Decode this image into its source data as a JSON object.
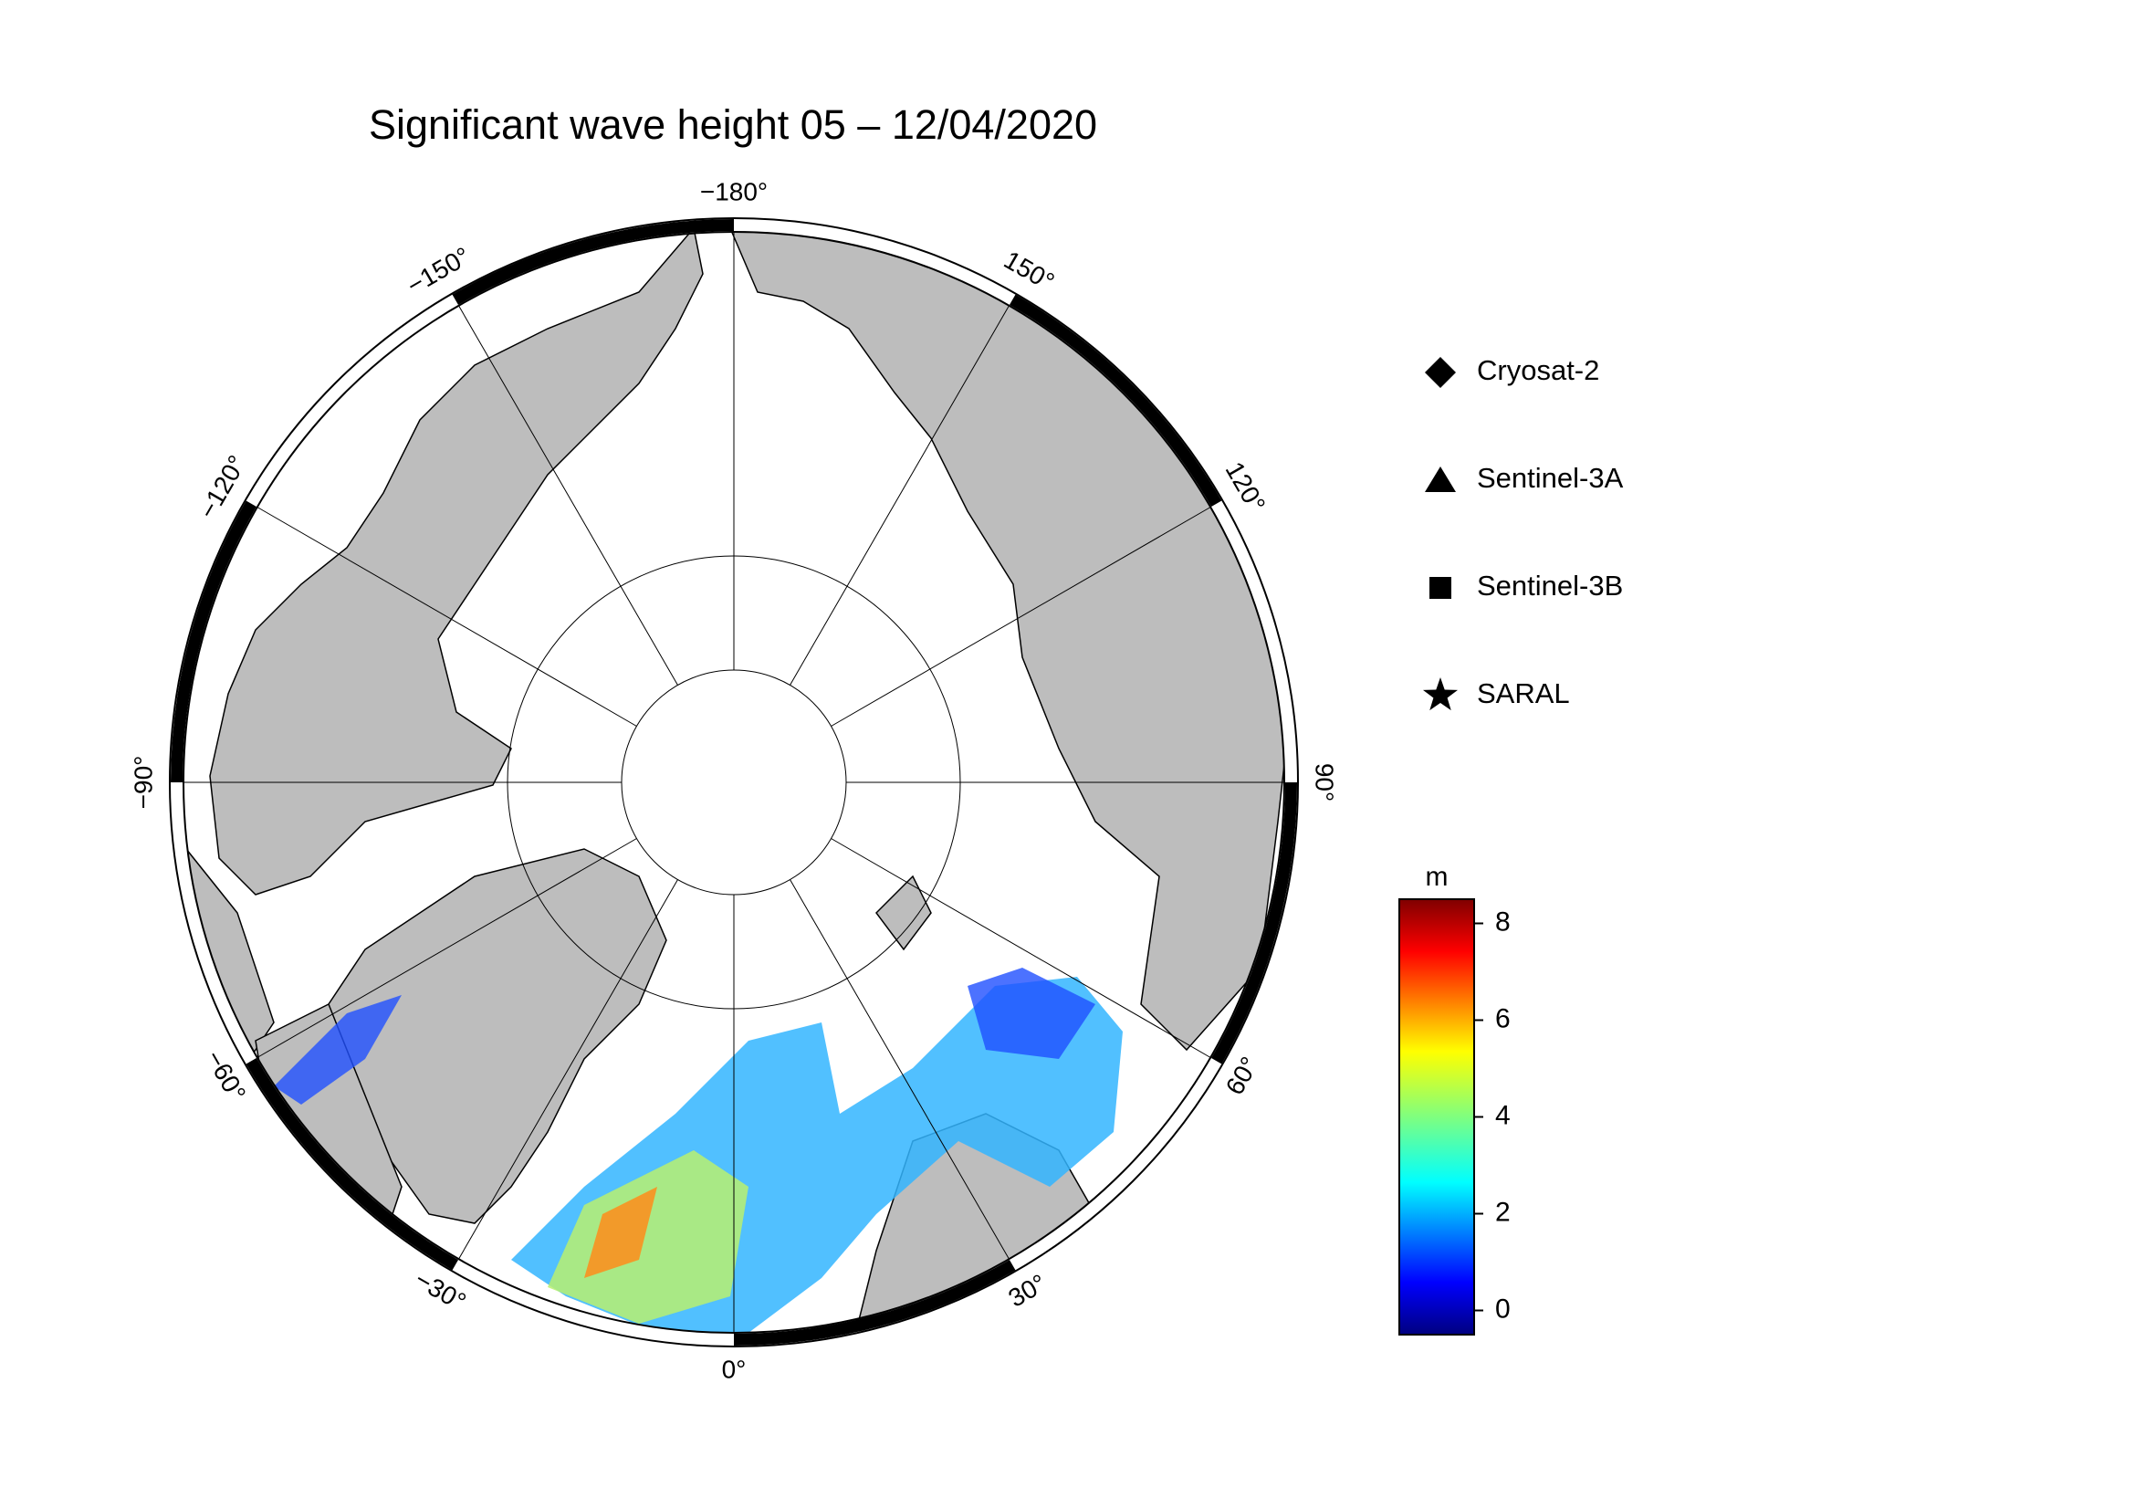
{
  "map": {
    "title": "Significant wave height 05 – 12/04/2020",
    "meridians": [
      {
        "value": -180,
        "label": "−180°"
      },
      {
        "value": -150,
        "label": "−150°"
      },
      {
        "value": -120,
        "label": "−120°"
      },
      {
        "value": -90,
        "label": "−90°"
      },
      {
        "value": -60,
        "label": "−60°"
      },
      {
        "value": -30,
        "label": "−30°"
      },
      {
        "value": 0,
        "label": "0°"
      },
      {
        "value": 30,
        "label": "30°"
      },
      {
        "value": 60,
        "label": "60°"
      },
      {
        "value": 90,
        "label": "90°"
      },
      {
        "value": 120,
        "label": "120°"
      },
      {
        "value": 150,
        "label": "150°"
      }
    ],
    "legend": [
      {
        "name": "Cryosat-2",
        "marker": "diamond"
      },
      {
        "name": "Sentinel-3A",
        "marker": "triangle"
      },
      {
        "name": "Sentinel-3B",
        "marker": "square"
      },
      {
        "name": "SARAL",
        "marker": "star"
      }
    ],
    "colorbar": {
      "label": "m",
      "lim": [
        -0.5,
        8.5
      ],
      "ticks": [
        0,
        2,
        4,
        6,
        8
      ]
    }
  }
}
